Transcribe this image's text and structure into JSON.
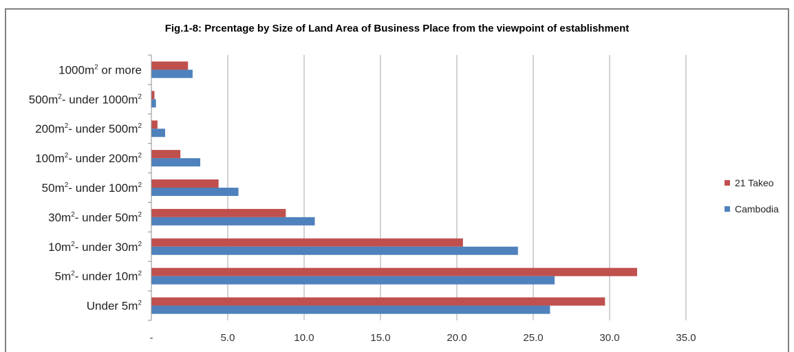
{
  "chart_data": {
    "type": "bar",
    "orientation": "horizontal",
    "title": "Fig.1-8: Prcentage by Size of Land Area of Business Place from the viewpoint of establishment",
    "categories": [
      "1000m² or more",
      "500m²- under 1000m²",
      "200m²- under 500m²",
      "100m²- under 200m²",
      "50m²- under 100m²",
      "30m²- under 50m²",
      "10m²- under 30m²",
      "5m²- under 10m²",
      "Under 5m²"
    ],
    "category_parts": [
      [
        "1000",
        "m",
        "2",
        " or more",
        "",
        ""
      ],
      [
        "500",
        "m",
        "2",
        "- under 1000",
        "m",
        "2"
      ],
      [
        "200",
        "m",
        "2",
        "- under 500",
        "m",
        "2"
      ],
      [
        "100",
        "m",
        "2",
        "- under 200",
        "m",
        "2"
      ],
      [
        "50",
        "m",
        "2",
        "- under 100",
        "m",
        "2"
      ],
      [
        "30",
        "m",
        "2",
        "- under 50",
        "m",
        "2"
      ],
      [
        "10",
        "m",
        "2",
        "- under 30",
        "m",
        "2"
      ],
      [
        "5",
        "m",
        "2",
        "- under 10",
        "m",
        "2"
      ],
      [
        "Under 5",
        "m",
        "2",
        "",
        "",
        ""
      ]
    ],
    "series": [
      {
        "name": "21 Takeo",
        "color": "#c0504d",
        "values": [
          2.4,
          0.2,
          0.4,
          1.9,
          4.4,
          8.8,
          20.4,
          31.8,
          29.7
        ]
      },
      {
        "name": "Cambodia",
        "color": "#4f81bd",
        "values": [
          2.7,
          0.3,
          0.9,
          3.2,
          5.7,
          10.7,
          24.0,
          26.4,
          26.1
        ]
      }
    ],
    "xlim": [
      0,
      35
    ],
    "xticks": [
      0,
      5,
      10,
      15,
      20,
      25,
      30,
      35
    ],
    "xtick_labels": [
      "-",
      "5.0",
      "10.0",
      "15.0",
      "20.0",
      "25.0",
      "30.0",
      "35.0"
    ],
    "grid": true,
    "legend_position": "right",
    "xlabel": "",
    "ylabel": ""
  }
}
